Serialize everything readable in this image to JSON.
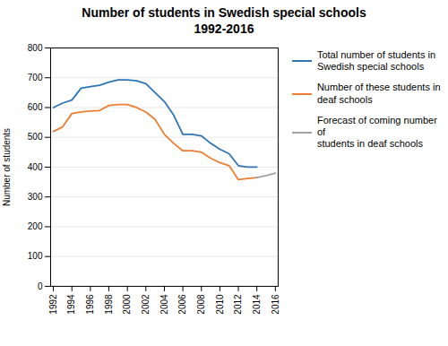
{
  "chart_data": {
    "type": "line",
    "title": "Number of students in Swedish special schools\n1992-2016",
    "ylabel": "Number of students",
    "x": [
      1992,
      1993,
      1994,
      1995,
      1996,
      1997,
      1998,
      1999,
      2000,
      2001,
      2002,
      2003,
      2004,
      2005,
      2006,
      2007,
      2008,
      2009,
      2010,
      2011,
      2012,
      2013,
      2014,
      2015,
      2016
    ],
    "series": [
      {
        "name": "Total number of students in\nSwedish special schools",
        "color": "#2E75B6",
        "values": [
          600,
          615,
          625,
          665,
          670,
          675,
          685,
          693,
          693,
          690,
          680,
          650,
          620,
          575,
          510,
          510,
          505,
          480,
          460,
          445,
          405,
          400,
          400,
          null,
          null
        ]
      },
      {
        "name": "Number of these students in\ndeaf schools",
        "color": "#ED7D31",
        "values": [
          520,
          535,
          580,
          585,
          588,
          590,
          607,
          610,
          610,
          600,
          585,
          560,
          510,
          480,
          455,
          455,
          450,
          430,
          415,
          405,
          358,
          362,
          365,
          null,
          null
        ]
      },
      {
        "name": "Forecast of coming number of\nstudents in deaf schools",
        "color": "#A0A0A0",
        "line_style": "solid",
        "values": [
          null,
          null,
          null,
          null,
          null,
          null,
          null,
          null,
          null,
          null,
          null,
          null,
          null,
          null,
          null,
          null,
          null,
          null,
          null,
          null,
          null,
          null,
          365,
          372,
          380
        ]
      }
    ],
    "xlim": [
      1991.7,
      2016.3
    ],
    "xticks": [
      1992,
      1994,
      1996,
      1998,
      2000,
      2002,
      2004,
      2006,
      2008,
      2010,
      2012,
      2014,
      2016
    ],
    "ylim": [
      0,
      800
    ],
    "yticks": [
      0,
      100,
      200,
      300,
      400,
      500,
      600,
      700,
      800
    ],
    "grid": "y",
    "legend": "right"
  }
}
